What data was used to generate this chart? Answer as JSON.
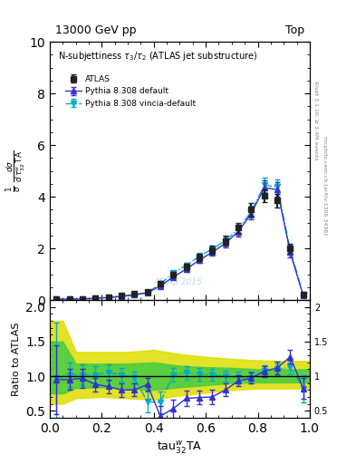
{
  "title_left": "13000 GeV pp",
  "title_right": "Top",
  "inner_title": "N-subjettiness $\\tau_3/\\tau_2$ (ATLAS jet substructure)",
  "ylabel_ratio": "Ratio to ATLAS",
  "xlabel": "$\\mathrm{tau}_{32}^{w}\\mathrm{TA}$",
  "rivet_text": "Rivet 3.1.10, ≥ 3.4M events",
  "mcplots_text": "mcplots.cern.ch [arXiv:1306.3436]",
  "atlas_watermark": "ATLAS 2015",
  "main_ylim": [
    0,
    10
  ],
  "main_yticks": [
    0,
    2,
    4,
    6,
    8,
    10
  ],
  "ratio_ylim": [
    0.4,
    2.1
  ],
  "ratio_yticks": [
    0.5,
    1.0,
    1.5,
    2.0
  ],
  "xlim": [
    0.0,
    1.0
  ],
  "xticks": [
    0.0,
    0.2,
    0.4,
    0.6,
    0.8,
    1.0
  ],
  "x_data": [
    0.025,
    0.075,
    0.125,
    0.175,
    0.225,
    0.275,
    0.325,
    0.375,
    0.425,
    0.475,
    0.525,
    0.575,
    0.625,
    0.675,
    0.725,
    0.775,
    0.825,
    0.875,
    0.925,
    0.975
  ],
  "atlas_y": [
    0.05,
    0.05,
    0.05,
    0.08,
    0.12,
    0.18,
    0.25,
    0.32,
    0.65,
    1.0,
    1.3,
    1.65,
    1.95,
    2.3,
    2.8,
    3.5,
    4.05,
    3.85,
    2.0,
    0.22
  ],
  "atlas_yerr": [
    0.01,
    0.01,
    0.01,
    0.02,
    0.02,
    0.03,
    0.04,
    0.05,
    0.08,
    0.1,
    0.12,
    0.15,
    0.15,
    0.18,
    0.2,
    0.25,
    0.25,
    0.25,
    0.18,
    0.08
  ],
  "pythia_default_y": [
    0.04,
    0.04,
    0.05,
    0.07,
    0.1,
    0.14,
    0.2,
    0.28,
    0.55,
    0.9,
    1.2,
    1.55,
    1.85,
    2.2,
    2.65,
    3.35,
    4.35,
    4.28,
    1.85,
    0.18
  ],
  "pythia_default_yerr": [
    0.005,
    0.005,
    0.006,
    0.01,
    0.01,
    0.015,
    0.02,
    0.03,
    0.06,
    0.08,
    0.1,
    0.12,
    0.13,
    0.16,
    0.18,
    0.22,
    0.28,
    0.28,
    0.2,
    0.08
  ],
  "pythia_vincia_y": [
    0.04,
    0.04,
    0.05,
    0.08,
    0.11,
    0.16,
    0.22,
    0.3,
    0.62,
    1.05,
    1.35,
    1.7,
    1.98,
    2.3,
    2.75,
    3.42,
    4.45,
    4.38,
    1.95,
    0.2
  ],
  "pythia_vincia_yerr": [
    0.005,
    0.005,
    0.006,
    0.01,
    0.01,
    0.015,
    0.02,
    0.03,
    0.06,
    0.08,
    0.1,
    0.12,
    0.13,
    0.16,
    0.18,
    0.22,
    0.28,
    0.28,
    0.2,
    0.08
  ],
  "ratio_default_y": [
    0.95,
    0.95,
    0.97,
    0.88,
    0.85,
    0.8,
    0.8,
    0.88,
    0.42,
    0.53,
    0.68,
    0.69,
    0.7,
    0.8,
    0.93,
    0.97,
    1.07,
    1.12,
    1.28,
    0.82
  ],
  "ratio_default_yerr": [
    0.5,
    0.15,
    0.14,
    0.1,
    0.1,
    0.1,
    0.09,
    0.09,
    0.15,
    0.13,
    0.11,
    0.1,
    0.1,
    0.09,
    0.08,
    0.08,
    0.08,
    0.09,
    0.1,
    0.15
  ],
  "ratio_vincia_y": [
    0.97,
    1.02,
    1.02,
    1.02,
    1.05,
    1.02,
    0.98,
    0.63,
    0.62,
    1.02,
    1.05,
    1.03,
    1.02,
    1.0,
    0.98,
    0.98,
    1.08,
    1.1,
    1.13,
    0.82
  ],
  "ratio_vincia_yerr": [
    0.8,
    0.18,
    0.15,
    0.12,
    0.12,
    0.1,
    0.09,
    0.15,
    0.16,
    0.1,
    0.1,
    0.09,
    0.09,
    0.08,
    0.08,
    0.08,
    0.08,
    0.09,
    0.1,
    0.2
  ],
  "band_x": [
    0.0,
    0.05,
    0.1,
    0.2,
    0.3,
    0.4,
    0.5,
    0.6,
    0.7,
    0.8,
    0.9,
    1.0
  ],
  "band_yellow_lo": [
    0.6,
    0.6,
    0.68,
    0.7,
    0.68,
    0.66,
    0.72,
    0.76,
    0.8,
    0.82,
    0.82,
    0.82
  ],
  "band_yellow_hi": [
    1.8,
    1.8,
    1.35,
    1.35,
    1.35,
    1.38,
    1.32,
    1.28,
    1.25,
    1.23,
    1.22,
    1.22
  ],
  "band_green_lo": [
    0.75,
    0.75,
    0.83,
    0.84,
    0.82,
    0.8,
    0.84,
    0.87,
    0.9,
    0.91,
    0.91,
    0.91
  ],
  "band_green_hi": [
    1.5,
    1.5,
    1.18,
    1.18,
    1.18,
    1.2,
    1.15,
    1.13,
    1.12,
    1.1,
    1.1,
    1.1
  ],
  "color_atlas": "#222222",
  "color_default": "#3333cc",
  "color_vincia": "#00aacc",
  "color_green_band": "#44cc44",
  "color_yellow_band": "#dddd00"
}
